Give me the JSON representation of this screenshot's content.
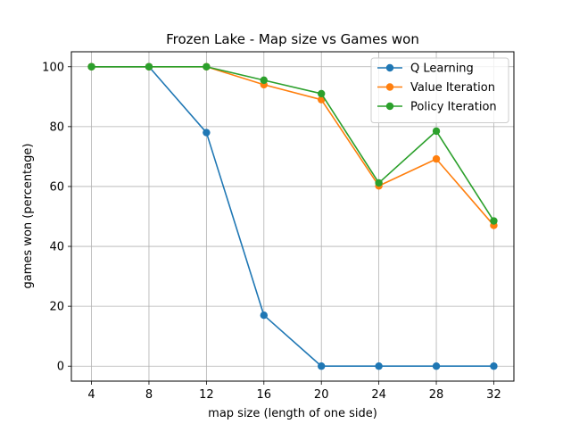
{
  "chart_data": {
    "type": "line",
    "title": "Frozen Lake - Map size vs Games won",
    "xlabel": "map size (length of one side)",
    "ylabel": "games won (percentage)",
    "x": [
      4,
      8,
      12,
      16,
      20,
      24,
      28,
      32
    ],
    "xlim": [
      2.6,
      33.4
    ],
    "ylim": [
      -5,
      105
    ],
    "yticks": [
      0,
      20,
      40,
      60,
      80,
      100
    ],
    "grid": true,
    "legend_position": "top-right",
    "series": [
      {
        "name": "Q Learning",
        "color": "#1f77b4",
        "values": [
          100,
          100,
          78,
          17,
          0,
          0,
          0,
          0
        ]
      },
      {
        "name": "Value Iteration",
        "color": "#ff7f0e",
        "values": [
          100,
          100,
          100,
          94,
          89,
          60.2,
          69.2,
          47
        ]
      },
      {
        "name": "Policy Iteration",
        "color": "#2ca02c",
        "values": [
          100,
          100,
          100,
          95.5,
          91,
          61.2,
          78.5,
          48.5
        ]
      }
    ]
  }
}
